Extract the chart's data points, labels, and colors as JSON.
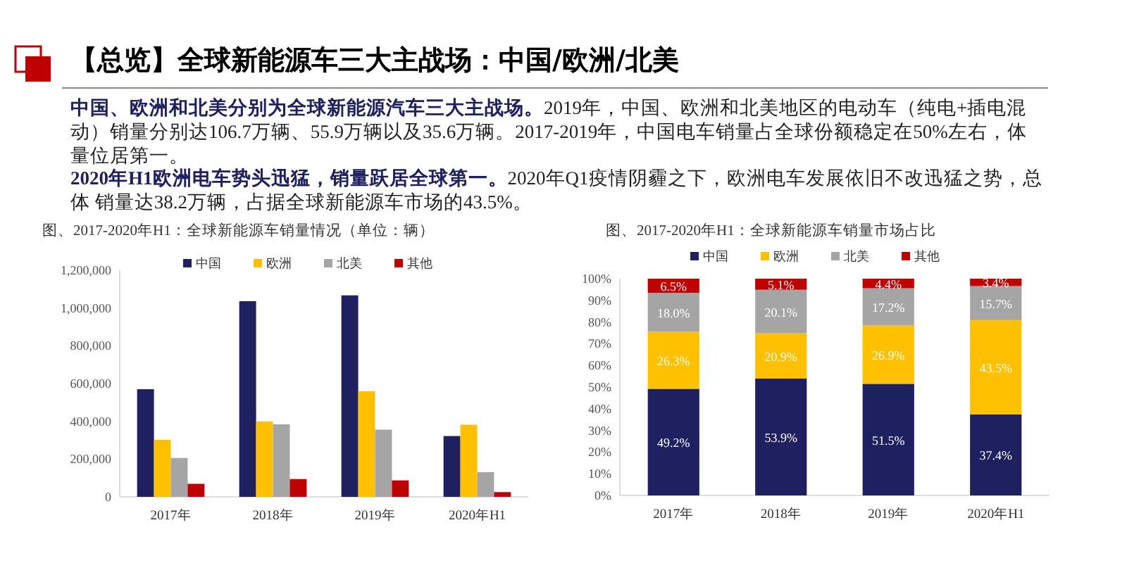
{
  "chart_data": [
    {
      "type": "other",
      "title": "【总览】全球新能源车三大主战场：中国/欧洲/北美",
      "annotations": [
        "中国、欧洲和北美分别为全球新能源汽车三大主战场。",
        "2019年，中国、欧洲和北美地区的电动车（纯电+插电混动）销量分别达106.7万辆、55.9万辆以及35.6万辆。2017-2019年，中国电车销量占全球份额稳定在50%左右，体量位居第一。",
        "2020年H1欧洲电车势头迅猛，销量跃居全球第一。",
        "2020年Q1疫情阴霾之下，欧洲电车发展依旧不改迅猛之势，总体 销量达38.2万辆，占据全球新能源车市场的43.5%。"
      ]
    },
    {
      "type": "bar",
      "title": "图、2017-2020年H1：全球新能源车销量情况（单位：辆）",
      "categories": [
        "2017年",
        "2018年",
        "2019年",
        "2020年H1"
      ],
      "series": [
        {
          "name": "中国",
          "color": "#1f2060",
          "values": [
            570000,
            1036000,
            1067000,
            322000
          ]
        },
        {
          "name": "欧洲",
          "color": "#ffc000",
          "values": [
            302000,
            399000,
            559000,
            382000
          ]
        },
        {
          "name": "北美",
          "color": "#a5a5a5",
          "values": [
            206000,
            384000,
            356000,
            131000
          ]
        },
        {
          "name": "其他",
          "color": "#c00000",
          "values": [
            69000,
            94000,
            87000,
            25000
          ]
        }
      ],
      "ylim": [
        0,
        1200000
      ],
      "yticks": [
        {
          "value": 0,
          "label": "0"
        },
        {
          "value": 200000,
          "label": "200,000"
        },
        {
          "value": 400000,
          "label": "400,000"
        },
        {
          "value": 600000,
          "label": "600,000"
        },
        {
          "value": 800000,
          "label": "800,000"
        },
        {
          "value": 1000000,
          "label": "1,000,000"
        },
        {
          "value": 1200000,
          "label": "1,200,000"
        }
      ],
      "legend": "top"
    },
    {
      "type": "bar",
      "stacked": true,
      "title": "图、2017-2020年H1：全球新能源车销量市场占比",
      "categories": [
        "2017年",
        "2018年",
        "2019年",
        "2020年H1"
      ],
      "series": [
        {
          "name": "中国",
          "color": "#1f2060",
          "values": [
            49.2,
            53.9,
            51.5,
            37.4
          ],
          "value_labels": [
            "49.2%",
            "53.9%",
            "51.5%",
            "37.4%"
          ]
        },
        {
          "name": "欧洲",
          "color": "#ffc000",
          "values": [
            26.3,
            20.9,
            26.9,
            43.5
          ],
          "value_labels": [
            "26.3%",
            "20.9%",
            "26.9%",
            "43.5%"
          ]
        },
        {
          "name": "北美",
          "color": "#a5a5a5",
          "values": [
            18.0,
            20.1,
            17.2,
            15.7
          ],
          "value_labels": [
            "18.0%",
            "20.1%",
            "17.2%",
            "15.7%"
          ]
        },
        {
          "name": "其他",
          "color": "#c00000",
          "values": [
            6.5,
            5.1,
            4.4,
            3.4
          ],
          "value_labels": [
            "6.5%",
            "5.1%",
            "4.4%",
            "3.4%"
          ]
        }
      ],
      "ylim": [
        0,
        100
      ],
      "yticks": [
        {
          "value": 0,
          "label": "0%"
        },
        {
          "value": 10,
          "label": "10%"
        },
        {
          "value": 20,
          "label": "20%"
        },
        {
          "value": 30,
          "label": "30%"
        },
        {
          "value": 40,
          "label": "40%"
        },
        {
          "value": 50,
          "label": "50%"
        },
        {
          "value": 60,
          "label": "60%"
        },
        {
          "value": 70,
          "label": "70%"
        },
        {
          "value": 80,
          "label": "80%"
        },
        {
          "value": 90,
          "label": "90%"
        },
        {
          "value": 100,
          "label": "100%"
        }
      ],
      "legend": "top"
    }
  ]
}
